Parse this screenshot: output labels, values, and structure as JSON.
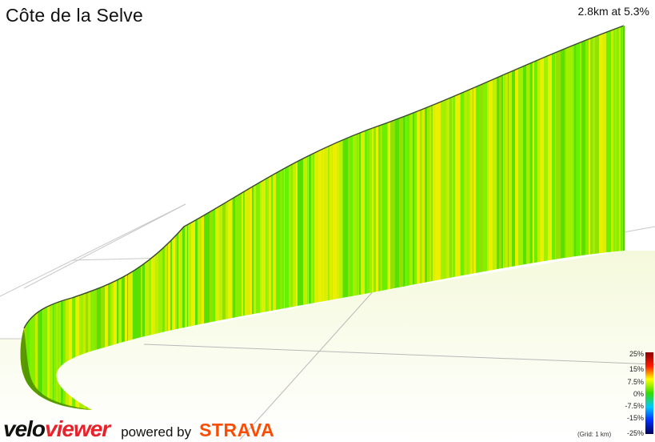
{
  "segment": {
    "title": "Côte de la Selve",
    "summary": "2.8km at 5.3%"
  },
  "legend": {
    "labels": [
      "25%",
      "15%",
      "7.5%",
      "0%",
      "-7.5%",
      "-15%",
      "-25%"
    ],
    "stops": [
      {
        "value": 25,
        "color": "#8b0000"
      },
      {
        "value": 15,
        "color": "#ff1a00"
      },
      {
        "value": 7.5,
        "color": "#ffff00"
      },
      {
        "value": 0,
        "color": "#33dd00"
      },
      {
        "value": -7.5,
        "color": "#00c8ff"
      },
      {
        "value": -15,
        "color": "#0030ff"
      },
      {
        "value": -25,
        "color": "#00005a"
      }
    ],
    "grid_note": "(Grid: 1 km)"
  },
  "branding": {
    "velo": "velo",
    "viewer": "viewer",
    "powered_by": "powered by",
    "strava": "STRAVA"
  },
  "colors": {
    "profile_green": "#66ee00",
    "profile_yellow": "#ffee00",
    "floor": "#f3f8d6",
    "grid": "#c8c8c8"
  }
}
